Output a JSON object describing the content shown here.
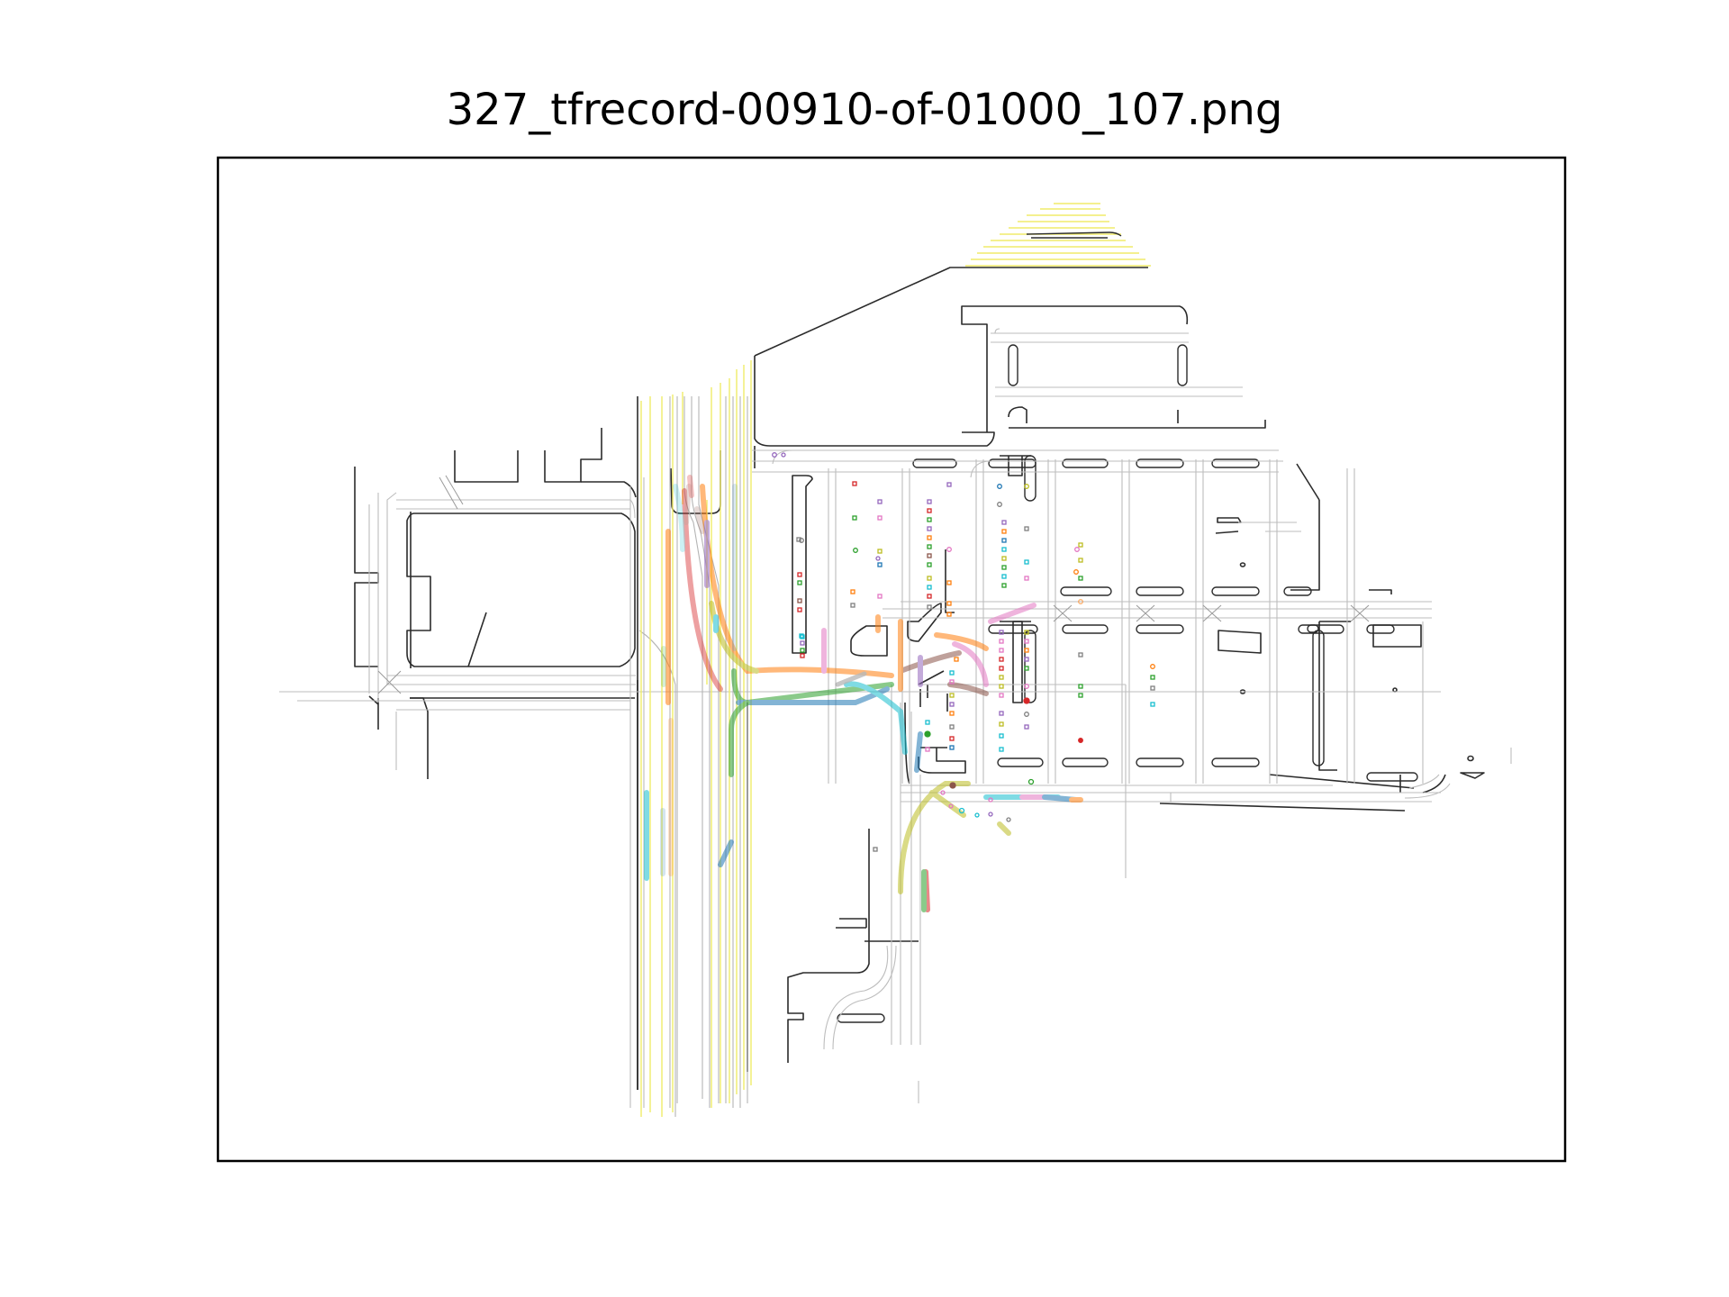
{
  "figure": {
    "title": "327_tfrecord-00910-of-01000_107.png"
  },
  "legend_colors": {
    "road_edge": "#2b2b2b",
    "lane_center": "#b4b4b4",
    "road_line_yellow": "#f2ee6a",
    "crosswalk": "#8c8c8c",
    "frame": "#000000"
  },
  "trajectory_palette": [
    "#1f77b4",
    "#ff7f0e",
    "#2ca02c",
    "#d62728",
    "#9467bd",
    "#8c564b",
    "#e377c2",
    "#7f7f7f",
    "#bcbd22",
    "#17becf"
  ]
}
